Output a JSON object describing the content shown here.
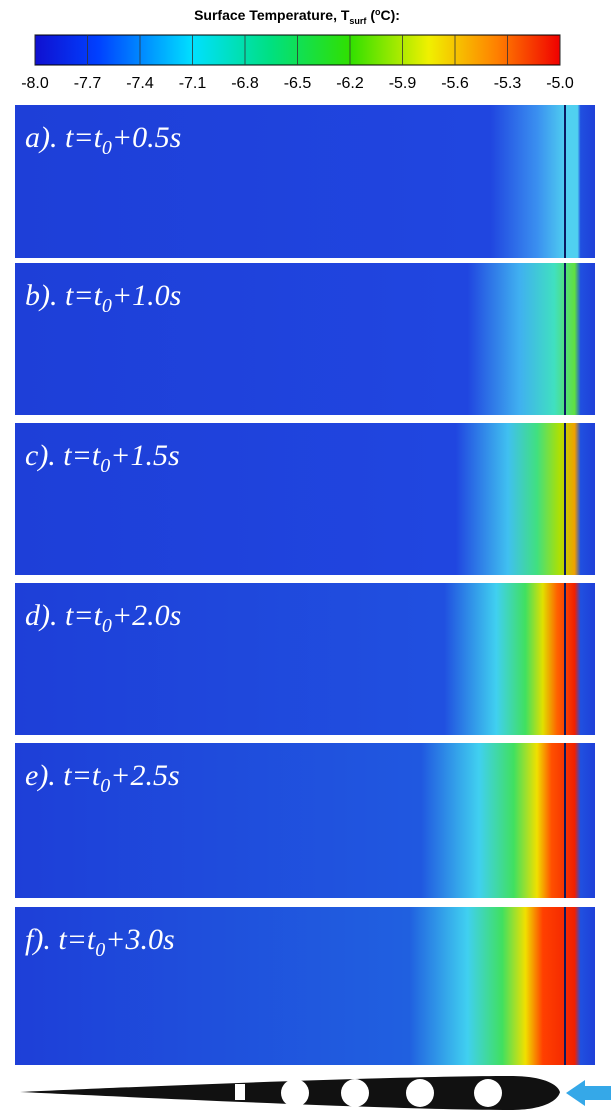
{
  "chart_data": {
    "type": "heatmap-panels",
    "colorbar": {
      "title": {
        "text": "Surface Temperature, T",
        "sub": "surf",
        "mid": " (",
        "sup": "o",
        "end": "C):"
      },
      "lim": [
        -8,
        -5
      ],
      "ticks": [
        {
          "value": -8,
          "label": "-8.0"
        },
        -7.7,
        -7.4,
        -7.1,
        -6.8,
        -6.5,
        -6.2,
        -5.9,
        -5.6,
        -5.3,
        {
          "value": -5,
          "label": "-5.0"
        }
      ]
    },
    "panels": [
      {
        "prefix": "a). t=t",
        "sub": "0",
        "suffix": "+0.5s"
      },
      {
        "prefix": "b). t=t",
        "sub": "0",
        "suffix": "+1.0s"
      },
      {
        "prefix": "c). t=t",
        "sub": "0",
        "suffix": "+1.5s"
      },
      {
        "prefix": "d). t=t",
        "sub": "0",
        "suffix": "+2.0s"
      },
      {
        "prefix": "e). t=t",
        "sub": "0",
        "suffix": "+2.5s"
      },
      {
        "prefix": "f). t=t",
        "sub": "0",
        "suffix": "+3.0s"
      }
    ]
  }
}
